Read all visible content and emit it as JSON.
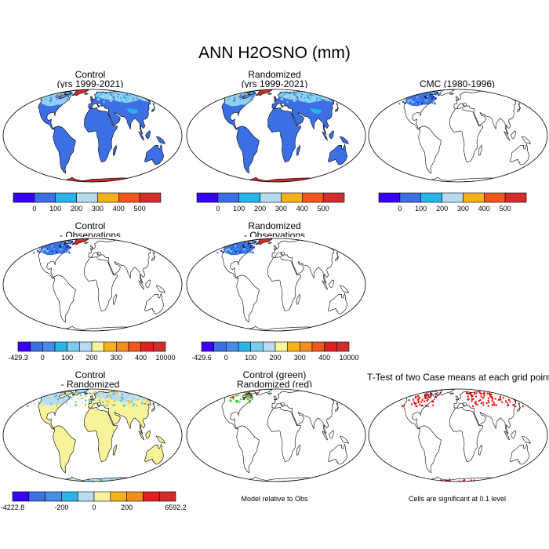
{
  "figure": {
    "title": "ANN H2OSNO (mm)"
  },
  "panels": [
    {
      "id": "control",
      "title_lines": [
        "Control",
        "(yrs 1999-2021)"
      ],
      "kind": "snow",
      "antarctic": true
    },
    {
      "id": "randomized",
      "title_lines": [
        "Randomized",
        "(yrs 1999-2021)"
      ],
      "kind": "snow",
      "antarctic": true
    },
    {
      "id": "cmc",
      "title_lines": [
        "CMC (1980-1996)"
      ],
      "kind": "snow-na",
      "antarctic": false
    },
    {
      "id": "control-obs",
      "title_lines": [
        "Control",
        "- Observations"
      ],
      "kind": "diff-na",
      "antarctic": false
    },
    {
      "id": "randomized-obs",
      "title_lines": [
        "Randomized",
        "- Observations"
      ],
      "kind": "diff-na",
      "antarctic": false
    },
    {
      "id": "control-randomized",
      "title_lines": [
        "Control",
        "- Randomized"
      ],
      "kind": "diff-global",
      "antarctic": true
    },
    {
      "id": "green-red",
      "title_lines": [
        "Control (green)",
        "Randomized (red)"
      ],
      "kind": "markers",
      "antarctic": false
    },
    {
      "id": "ttest",
      "title_lines": [
        "T-Test of two Case means at each grid point"
      ],
      "kind": "ttest",
      "antarctic": true
    }
  ],
  "colorbars": [
    {
      "id": "cb-control",
      "colors": [
        "#3a00f5",
        "#3c6fe3",
        "#29b4e8",
        "#b6dcf2",
        "#f4b21c",
        "#f2561d",
        "#d22d2d"
      ],
      "labels": [
        "0",
        "100",
        "200",
        "300",
        "400",
        "500"
      ]
    },
    {
      "id": "cb-randomized",
      "colors": [
        "#3a00f5",
        "#3c6fe3",
        "#29b4e8",
        "#b6dcf2",
        "#f4b21c",
        "#f2561d",
        "#d22d2d"
      ],
      "labels": [
        "0",
        "100",
        "200",
        "300",
        "400",
        "500"
      ]
    },
    {
      "id": "cb-cmc",
      "colors": [
        "#3a00f5",
        "#3c6fe3",
        "#29b4e8",
        "#b6dcf2",
        "#f4b21c",
        "#f2561d",
        "#d22d2d"
      ],
      "labels": [
        "0",
        "100",
        "200",
        "300",
        "400",
        "500"
      ]
    },
    {
      "id": "cb-control-obs",
      "colors": [
        "#3a00f5",
        "#3c6fe3",
        "#4a8ae8",
        "#29b4e8",
        "#7ccaf0",
        "#b6dcf2",
        "#f6f39a",
        "#f4b21c",
        "#f28e1c",
        "#f2561d",
        "#e02020",
        "#d22d2d"
      ],
      "labels": [
        "-429.3",
        "0",
        "100",
        "200",
        "300",
        "400",
        "10000"
      ],
      "label_slots": [
        0,
        2,
        4,
        6,
        8,
        10,
        12
      ]
    },
    {
      "id": "cb-randomized-obs",
      "colors": [
        "#3a00f5",
        "#3c6fe3",
        "#4a8ae8",
        "#29b4e8",
        "#7ccaf0",
        "#b6dcf2",
        "#f6f39a",
        "#f4b21c",
        "#f28e1c",
        "#f2561d",
        "#e02020",
        "#d22d2d"
      ],
      "labels": [
        "-429.6",
        "0",
        "100",
        "200",
        "300",
        "400",
        "10000"
      ],
      "label_slots": [
        0,
        2,
        4,
        6,
        8,
        10,
        12
      ]
    },
    {
      "id": "cb-control-randomized",
      "colors": [
        "#3a00f5",
        "#3c6fe3",
        "#4a8ae8",
        "#29b4e8",
        "#b6dcf2",
        "#f6f39a",
        "#f4b21c",
        "#f28e1c",
        "#e02020",
        "#d22d2d"
      ],
      "labels": [
        "-4222.8",
        "-200",
        "0",
        "200",
        "6592.2"
      ],
      "label_slots": [
        0,
        3,
        5,
        7,
        10
      ]
    }
  ],
  "notes": {
    "model_relative": "Model relative to Obs",
    "significance": "Cells are significant at 0.1 level"
  }
}
